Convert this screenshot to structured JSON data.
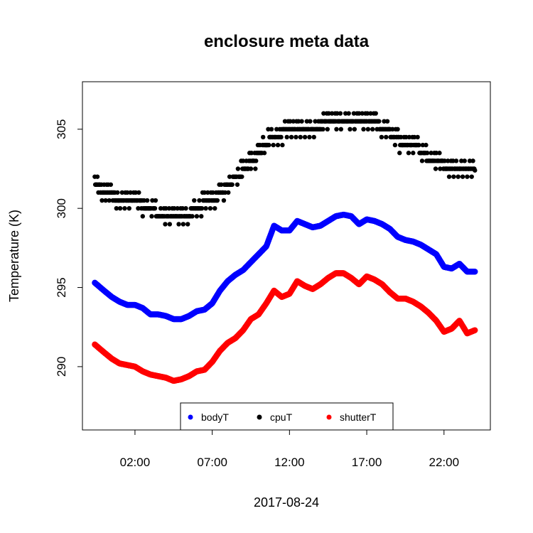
{
  "chart_data": {
    "type": "scatter",
    "title": "enclosure meta data",
    "xlabel": "2017-08-24",
    "ylabel": "Temperature (K)",
    "xlim_hours": [
      -1.4,
      25.0
    ],
    "ylim": [
      286.0,
      308.0
    ],
    "x_ticks": [
      {
        "hours": 2,
        "label": "02:00"
      },
      {
        "hours": 7,
        "label": "07:00"
      },
      {
        "hours": 12,
        "label": "12:00"
      },
      {
        "hours": 17,
        "label": "17:00"
      },
      {
        "hours": 22,
        "label": "22:00"
      }
    ],
    "y_ticks": [
      {
        "value": 290,
        "label": "290"
      },
      {
        "value": 295,
        "label": "295"
      },
      {
        "value": 300,
        "label": "300"
      },
      {
        "value": 305,
        "label": "305"
      }
    ],
    "legend_position": "bottom-center",
    "series": [
      {
        "name": "bodyT",
        "color": "#0000ff",
        "points": [
          [
            -0.6,
            295.3
          ],
          [
            0.0,
            294.8
          ],
          [
            0.5,
            294.4
          ],
          [
            1.0,
            294.1
          ],
          [
            1.5,
            293.9
          ],
          [
            2.0,
            293.9
          ],
          [
            2.5,
            293.7
          ],
          [
            3.0,
            293.3
          ],
          [
            3.5,
            293.3
          ],
          [
            4.0,
            293.2
          ],
          [
            4.5,
            293.0
          ],
          [
            5.0,
            293.0
          ],
          [
            5.5,
            293.2
          ],
          [
            6.0,
            293.5
          ],
          [
            6.5,
            293.6
          ],
          [
            7.0,
            294.0
          ],
          [
            7.5,
            294.8
          ],
          [
            8.0,
            295.4
          ],
          [
            8.5,
            295.8
          ],
          [
            9.0,
            296.1
          ],
          [
            9.5,
            296.6
          ],
          [
            10.0,
            297.1
          ],
          [
            10.5,
            297.6
          ],
          [
            11.0,
            298.9
          ],
          [
            11.5,
            298.6
          ],
          [
            12.0,
            298.6
          ],
          [
            12.5,
            299.2
          ],
          [
            13.0,
            299.0
          ],
          [
            13.5,
            298.8
          ],
          [
            14.0,
            298.9
          ],
          [
            14.5,
            299.2
          ],
          [
            15.0,
            299.5
          ],
          [
            15.5,
            299.6
          ],
          [
            16.0,
            299.5
          ],
          [
            16.5,
            299.0
          ],
          [
            17.0,
            299.3
          ],
          [
            17.5,
            299.2
          ],
          [
            18.0,
            299.0
          ],
          [
            18.5,
            298.7
          ],
          [
            19.0,
            298.2
          ],
          [
            19.5,
            298.0
          ],
          [
            20.0,
            297.9
          ],
          [
            20.5,
            297.7
          ],
          [
            21.0,
            297.4
          ],
          [
            21.5,
            297.1
          ],
          [
            22.0,
            296.3
          ],
          [
            22.5,
            296.2
          ],
          [
            23.0,
            296.5
          ],
          [
            23.5,
            296.0
          ],
          [
            24.0,
            296.0
          ]
        ]
      },
      {
        "name": "cpuT",
        "color": "#000000",
        "points": [
          [
            -0.6,
            301.4
          ],
          [
            -0.2,
            301.2
          ],
          [
            0.2,
            300.9
          ],
          [
            0.6,
            300.8
          ],
          [
            1.0,
            300.4
          ],
          [
            1.5,
            300.4
          ],
          [
            2.0,
            300.4
          ],
          [
            2.5,
            300.2
          ],
          [
            3.0,
            299.9
          ],
          [
            3.5,
            299.7
          ],
          [
            4.0,
            299.6
          ],
          [
            4.5,
            299.5
          ],
          [
            5.0,
            299.5
          ],
          [
            5.5,
            299.6
          ],
          [
            6.0,
            300.1
          ],
          [
            6.5,
            300.3
          ],
          [
            7.0,
            300.4
          ],
          [
            7.5,
            300.9
          ],
          [
            8.0,
            301.4
          ],
          [
            8.5,
            301.9
          ],
          [
            9.0,
            302.4
          ],
          [
            9.5,
            302.9
          ],
          [
            10.0,
            303.4
          ],
          [
            10.5,
            304.1
          ],
          [
            11.0,
            304.7
          ],
          [
            11.5,
            304.7
          ],
          [
            12.0,
            305.2
          ],
          [
            12.5,
            305.0
          ],
          [
            13.0,
            304.9
          ],
          [
            13.5,
            304.8
          ],
          [
            14.0,
            305.2
          ],
          [
            14.5,
            305.5
          ],
          [
            15.0,
            305.7
          ],
          [
            15.5,
            305.6
          ],
          [
            16.0,
            305.4
          ],
          [
            16.5,
            305.3
          ],
          [
            17.0,
            305.4
          ],
          [
            17.5,
            305.4
          ],
          [
            18.0,
            305.1
          ],
          [
            18.5,
            304.8
          ],
          [
            19.0,
            304.3
          ],
          [
            19.5,
            304.0
          ],
          [
            20.0,
            303.9
          ],
          [
            20.5,
            303.7
          ],
          [
            21.0,
            303.2
          ],
          [
            21.5,
            302.9
          ],
          [
            22.0,
            302.7
          ],
          [
            22.5,
            302.5
          ],
          [
            23.0,
            302.6
          ],
          [
            23.5,
            302.4
          ],
          [
            24.0,
            302.4
          ]
        ]
      },
      {
        "name": "shutterT",
        "color": "#ff0000",
        "points": [
          [
            -0.6,
            291.4
          ],
          [
            0.0,
            290.9
          ],
          [
            0.5,
            290.5
          ],
          [
            1.0,
            290.2
          ],
          [
            1.5,
            290.1
          ],
          [
            2.0,
            290.0
          ],
          [
            2.5,
            289.7
          ],
          [
            3.0,
            289.5
          ],
          [
            3.5,
            289.4
          ],
          [
            4.0,
            289.3
          ],
          [
            4.5,
            289.1
          ],
          [
            5.0,
            289.2
          ],
          [
            5.5,
            289.4
          ],
          [
            6.0,
            289.7
          ],
          [
            6.5,
            289.8
          ],
          [
            7.0,
            290.3
          ],
          [
            7.5,
            291.0
          ],
          [
            8.0,
            291.5
          ],
          [
            8.5,
            291.8
          ],
          [
            9.0,
            292.3
          ],
          [
            9.5,
            293.0
          ],
          [
            10.0,
            293.3
          ],
          [
            10.5,
            294.0
          ],
          [
            11.0,
            294.8
          ],
          [
            11.5,
            294.4
          ],
          [
            12.0,
            294.6
          ],
          [
            12.5,
            295.4
          ],
          [
            13.0,
            295.1
          ],
          [
            13.5,
            294.9
          ],
          [
            14.0,
            295.2
          ],
          [
            14.5,
            295.6
          ],
          [
            15.0,
            295.9
          ],
          [
            15.5,
            295.9
          ],
          [
            16.0,
            295.6
          ],
          [
            16.5,
            295.2
          ],
          [
            17.0,
            295.7
          ],
          [
            17.5,
            295.5
          ],
          [
            18.0,
            295.2
          ],
          [
            18.5,
            294.7
          ],
          [
            19.0,
            294.3
          ],
          [
            19.5,
            294.3
          ],
          [
            20.0,
            294.1
          ],
          [
            20.5,
            293.8
          ],
          [
            21.0,
            293.4
          ],
          [
            21.5,
            292.9
          ],
          [
            22.0,
            292.2
          ],
          [
            22.5,
            292.4
          ],
          [
            23.0,
            292.9
          ],
          [
            23.5,
            292.1
          ],
          [
            24.0,
            292.3
          ]
        ]
      }
    ]
  }
}
